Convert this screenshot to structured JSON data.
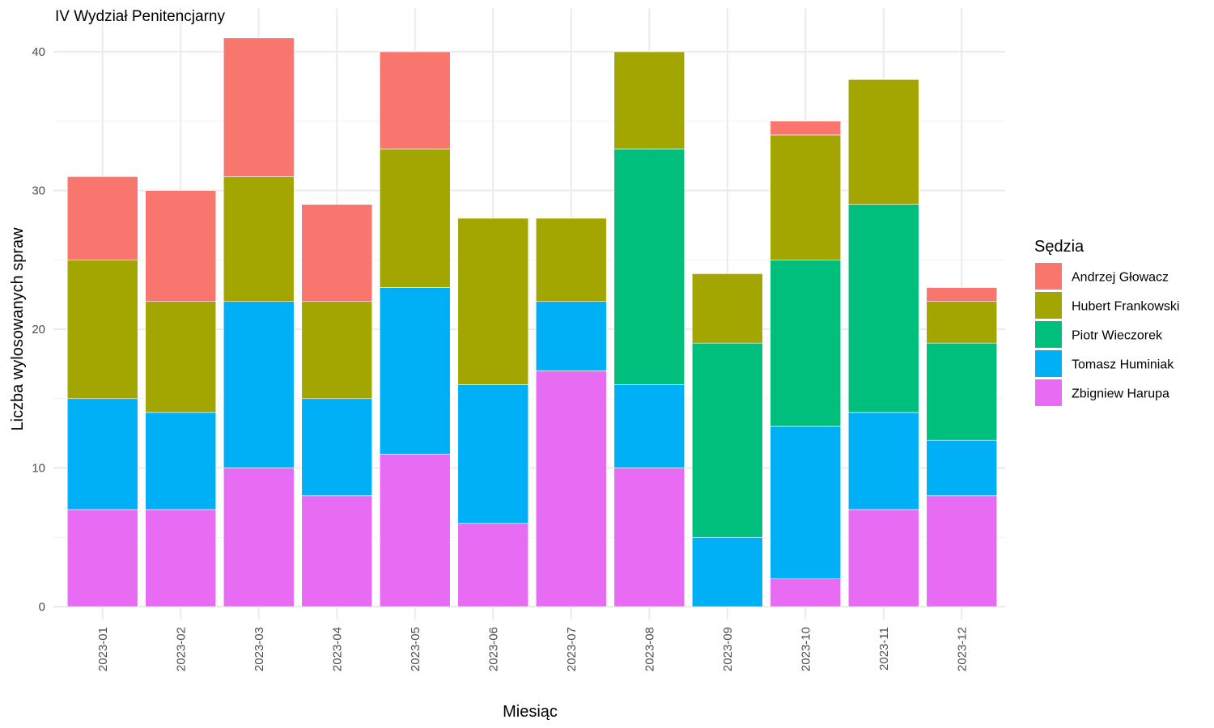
{
  "chart_data": {
    "type": "bar",
    "stacked": true,
    "title": "IV Wydział Penitencjarny",
    "xlabel": "Miesiąc",
    "ylabel": "Liczba wylosowanych spraw",
    "ylim": [
      0,
      42
    ],
    "yticks": [
      0,
      10,
      20,
      30,
      40
    ],
    "grid": true,
    "legend_title": "Sędzia",
    "legend_position": "right",
    "categories": [
      "2023-01",
      "2023-02",
      "2023-03",
      "2023-04",
      "2023-05",
      "2023-06",
      "2023-07",
      "2023-08",
      "2023-09",
      "2023-10",
      "2023-11",
      "2023-12"
    ],
    "series": [
      {
        "name": "Andrzej Głowacz",
        "color": "#F8766D",
        "values": [
          6,
          8,
          10,
          7,
          7,
          0,
          0,
          0,
          0,
          1,
          0,
          1
        ]
      },
      {
        "name": "Hubert Frankowski",
        "color": "#A3A500",
        "values": [
          10,
          8,
          9,
          7,
          10,
          12,
          6,
          7,
          5,
          9,
          9,
          3
        ]
      },
      {
        "name": "Piotr Wieczorek",
        "color": "#00BF7D",
        "values": [
          0,
          0,
          0,
          0,
          0,
          0,
          0,
          17,
          14,
          12,
          15,
          7
        ]
      },
      {
        "name": "Tomasz Huminiak",
        "color": "#00B0F6",
        "values": [
          8,
          7,
          12,
          7,
          12,
          10,
          5,
          6,
          5,
          11,
          7,
          4
        ]
      },
      {
        "name": "Zbigniew Harupa",
        "color": "#E76BF3",
        "values": [
          7,
          7,
          10,
          8,
          11,
          6,
          17,
          10,
          0,
          2,
          7,
          8
        ]
      }
    ]
  }
}
